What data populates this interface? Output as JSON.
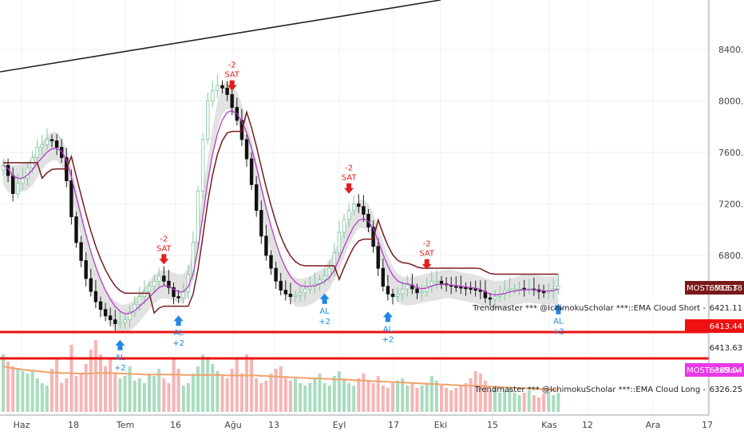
{
  "colors": {
    "bull": "#3a3a3a",
    "bear": "#111111",
    "volume_up": "#a9dcbf",
    "volume_down": "#f6b5b5",
    "cloud": "#d8d8d8",
    "most_line": "#7a1a1a",
    "ema_line": "#b43ec8",
    "trend_line": "#222222",
    "red_line": "#ee1111",
    "sell": "#e0211e",
    "buy": "#1e88e5",
    "volume_ma": "#f2a26a"
  },
  "chart_data": {
    "type": "candlestick",
    "grid": true,
    "y_axis_position": "right",
    "y_ticks": [
      "6800.00",
      "7200.00",
      "7600.00",
      "8000.00",
      "8400.00"
    ],
    "ylim": [
      5900,
      8650
    ],
    "x_ticks": [
      "Haz",
      "18",
      "Tem",
      "16",
      "Ağu",
      "13",
      "Eyl",
      "17",
      "Eki",
      "15",
      "Kas",
      "12",
      "Ara",
      "17"
    ],
    "series": [
      {
        "name": "price",
        "values": [
          7500,
          7420,
          7280,
          7360,
          7400,
          7480,
          7560,
          7640,
          7660,
          7700,
          7690,
          7640,
          7560,
          7380,
          7100,
          6900,
          6760,
          6620,
          6520,
          6440,
          6380,
          6330,
          6300,
          6270,
          6280,
          6300,
          6360,
          6420,
          6480,
          6520,
          6560,
          6600,
          6640,
          6600,
          6550,
          6480,
          6470,
          6520,
          6650,
          6900,
          7300,
          7700,
          8000,
          8080,
          8120,
          8100,
          8050,
          7950,
          7850,
          7700,
          7550,
          7350,
          7150,
          6950,
          6800,
          6700,
          6600,
          6530,
          6500,
          6480,
          6490,
          6510,
          6540,
          6560,
          6580,
          6610,
          6640,
          6700,
          6820,
          6980,
          7080,
          7150,
          7200,
          7180,
          7120,
          7020,
          6870,
          6700,
          6560,
          6500,
          6480,
          6500,
          6540,
          6570,
          6540,
          6510,
          6520,
          6560,
          6600,
          6600,
          6580,
          6570,
          6560,
          6555,
          6550,
          6545,
          6540,
          6530,
          6520,
          6470,
          6460,
          6480,
          6500,
          6530,
          6540,
          6540,
          6545,
          6540,
          6540,
          6535,
          6520,
          6510,
          6520,
          6540,
          6560
        ]
      },
      {
        "name": "volume",
        "values": [
          120,
          105,
          95,
          90,
          85,
          80,
          88,
          70,
          60,
          55,
          90,
          110,
          60,
          70,
          140,
          75,
          80,
          100,
          130,
          150,
          120,
          95,
          110,
          80,
          70,
          75,
          95,
          65,
          70,
          60,
          80,
          75,
          90,
          70,
          60,
          110,
          90,
          55,
          60,
          80,
          95,
          120,
          115,
          100,
          85,
          75,
          70,
          90,
          110,
          80,
          120,
          110,
          70,
          60,
          65,
          80,
          90,
          95,
          75,
          65,
          70,
          60,
          55,
          60,
          70,
          80,
          60,
          55,
          75,
          85,
          70,
          60,
          55,
          70,
          80,
          65,
          60,
          75,
          55,
          50,
          60,
          65,
          70,
          55,
          60,
          50,
          55,
          60,
          75,
          65,
          55,
          50,
          45,
          50,
          55,
          60,
          70,
          85,
          80,
          65,
          45,
          50,
          40,
          45,
          50,
          40,
          35,
          40,
          45,
          35,
          30,
          38,
          42,
          35,
          40
        ]
      },
      {
        "name": "volume_ma",
        "values": [
          95,
          93,
          91,
          90,
          88,
          87,
          86,
          85,
          84,
          83,
          82,
          82,
          81,
          81,
          81,
          80,
          80,
          80,
          80,
          81,
          81,
          81,
          81,
          81,
          80,
          80,
          79,
          79,
          79,
          78,
          78,
          78,
          78,
          78,
          78,
          78,
          78,
          77,
          77,
          77,
          77,
          77,
          77,
          77,
          77,
          77,
          76,
          76,
          76,
          76,
          76,
          76,
          76,
          75,
          75,
          74,
          74,
          73,
          73,
          72,
          72,
          71,
          71,
          70,
          70,
          70,
          69,
          69,
          68,
          68,
          67,
          67,
          66,
          66,
          65,
          65,
          64,
          64,
          63,
          63,
          62,
          62,
          61,
          61,
          60,
          60,
          59,
          59,
          58,
          58,
          57,
          57,
          56,
          56,
          55,
          55,
          55,
          54,
          54,
          53,
          53,
          52,
          52,
          51,
          51,
          50,
          50,
          49,
          49,
          48,
          48,
          47,
          47,
          46,
          46
        ]
      }
    ],
    "indicators": [
      {
        "label": "MOST::MOST",
        "value": "6533.38",
        "badge_color": "#7a1a1a"
      },
      {
        "label": "Trendmaster *** @IchimokuScholar ***::EMA Cloud Short",
        "value": "6421.11"
      },
      {
        "label": "",
        "value": "6413.44",
        "badge_color": "#ee1111"
      },
      {
        "label": "",
        "value": "6413.63"
      },
      {
        "label": "MOST::exMov",
        "value": "6385.04",
        "badge_color": "#e838e8"
      },
      {
        "label": "Trendmaster *** @IchimokuScholar ***::EMA Cloud Long",
        "value": "6326.25"
      }
    ],
    "signals": [
      {
        "type": "sell",
        "text": "SAT",
        "num": "-2",
        "index": 33
      },
      {
        "type": "sell",
        "text": "SAT",
        "num": "-2",
        "index": 47
      },
      {
        "type": "sell",
        "text": "SAT",
        "num": "-2",
        "index": 71
      },
      {
        "type": "sell",
        "text": "SAT",
        "num": "-2",
        "index": 87
      },
      {
        "type": "buy",
        "text": "AL",
        "num": "+2",
        "index": 24
      },
      {
        "type": "buy",
        "text": "AL",
        "num": "+2",
        "index": 36
      },
      {
        "type": "buy",
        "text": "AL",
        "num": "+2",
        "index": 66
      },
      {
        "type": "buy",
        "text": "AL",
        "num": "+2",
        "index": 79
      },
      {
        "type": "buy",
        "text": "AL",
        "num": "+2",
        "index": 114
      }
    ],
    "horizontal_lines": [
      6413.44,
      6330
    ]
  }
}
